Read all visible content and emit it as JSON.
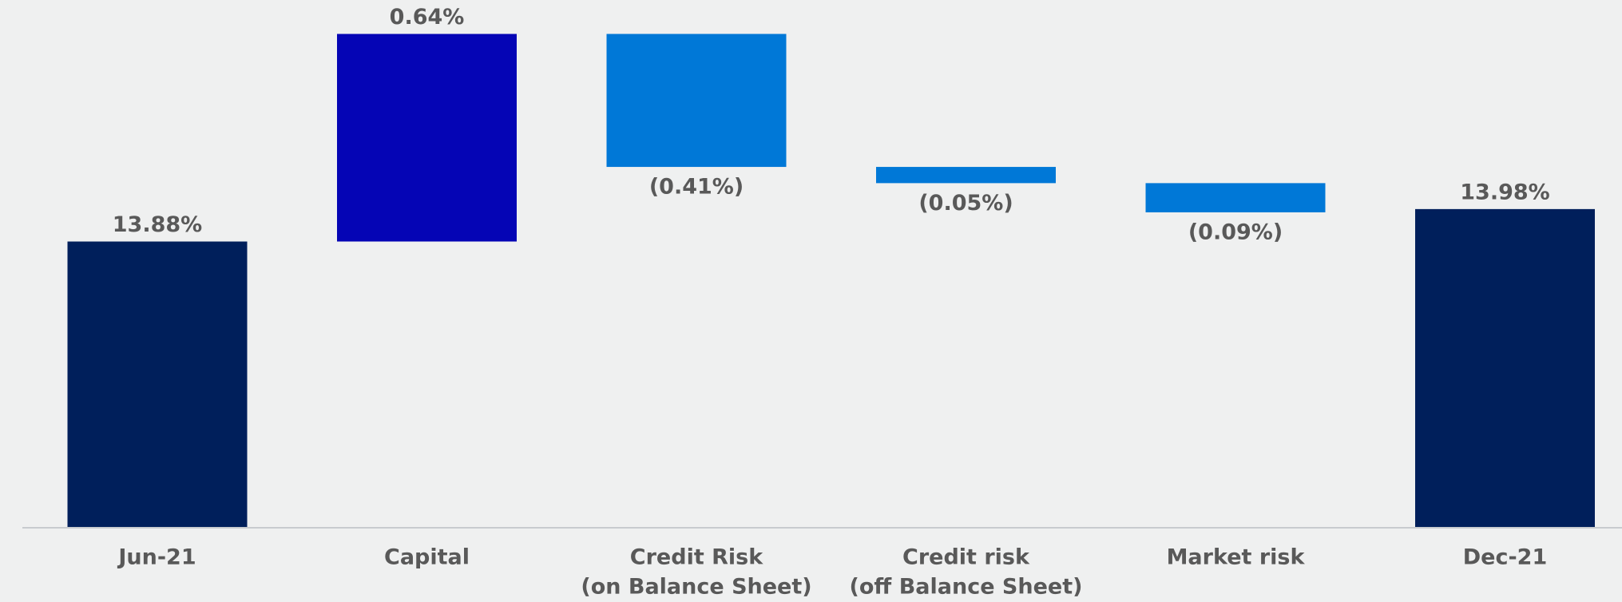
{
  "chart_data": {
    "type": "waterfall",
    "categories": [
      [
        "Jun-21"
      ],
      [
        "Capital"
      ],
      [
        "Credit Risk",
        "(on Balance Sheet)"
      ],
      [
        "Credit risk",
        "(off Balance Sheet)"
      ],
      [
        "Market risk"
      ],
      [
        "Dec-21"
      ]
    ],
    "values": [
      13.88,
      0.64,
      -0.41,
      -0.05,
      -0.09,
      13.98
    ],
    "value_labels": [
      "13.88%",
      "0.64%",
      "(0.41%)",
      "(0.05%)",
      "(0.09%)",
      "13.98%"
    ],
    "measures": [
      "total",
      "relative",
      "relative",
      "relative",
      "relative",
      "total"
    ],
    "colors": [
      "#001f5b",
      "#0505b5",
      "#0078d7",
      "#0078d7",
      "#0078d7",
      "#001f5b"
    ],
    "ylim": [
      13,
      14.6
    ]
  }
}
